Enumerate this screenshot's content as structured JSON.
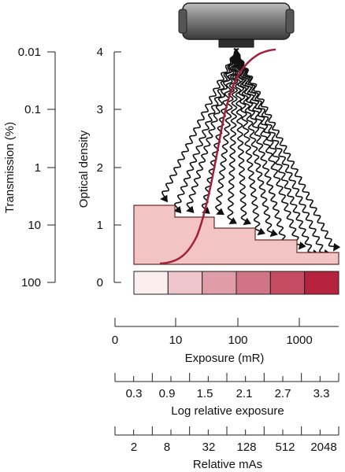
{
  "transmission_axis": {
    "title": "Transmission (%)",
    "ticks": [
      "0.01",
      "0.1",
      "1",
      "10",
      "100"
    ]
  },
  "density_axis": {
    "title": "Optical density",
    "ticks": [
      "4",
      "3",
      "2",
      "1",
      "0"
    ]
  },
  "exposure_axis": {
    "title": "Exposure (mR)",
    "ticks": [
      "0",
      "10",
      "100",
      "1000"
    ]
  },
  "log_exposure_axis": {
    "title": "Log relative exposure",
    "ticks": [
      "0.3",
      "0.9",
      "1.5",
      "2.1",
      "2.7",
      "3.3"
    ]
  },
  "mas_axis": {
    "title": "Relative mAs",
    "ticks": [
      "2",
      "8",
      "32",
      "128",
      "512",
      "2048"
    ]
  },
  "step_wedge": {
    "steps": 6,
    "fill": "#f2c4c4",
    "stroke": "#6b2a2a"
  },
  "density_strip": {
    "segments": 6,
    "color_light": "#fbeeee",
    "color_dark": "#b5233f"
  },
  "curve_color": "#a3203a",
  "tube": {
    "body": "#4a4a4a",
    "highlight": "#bdbdbd"
  }
}
